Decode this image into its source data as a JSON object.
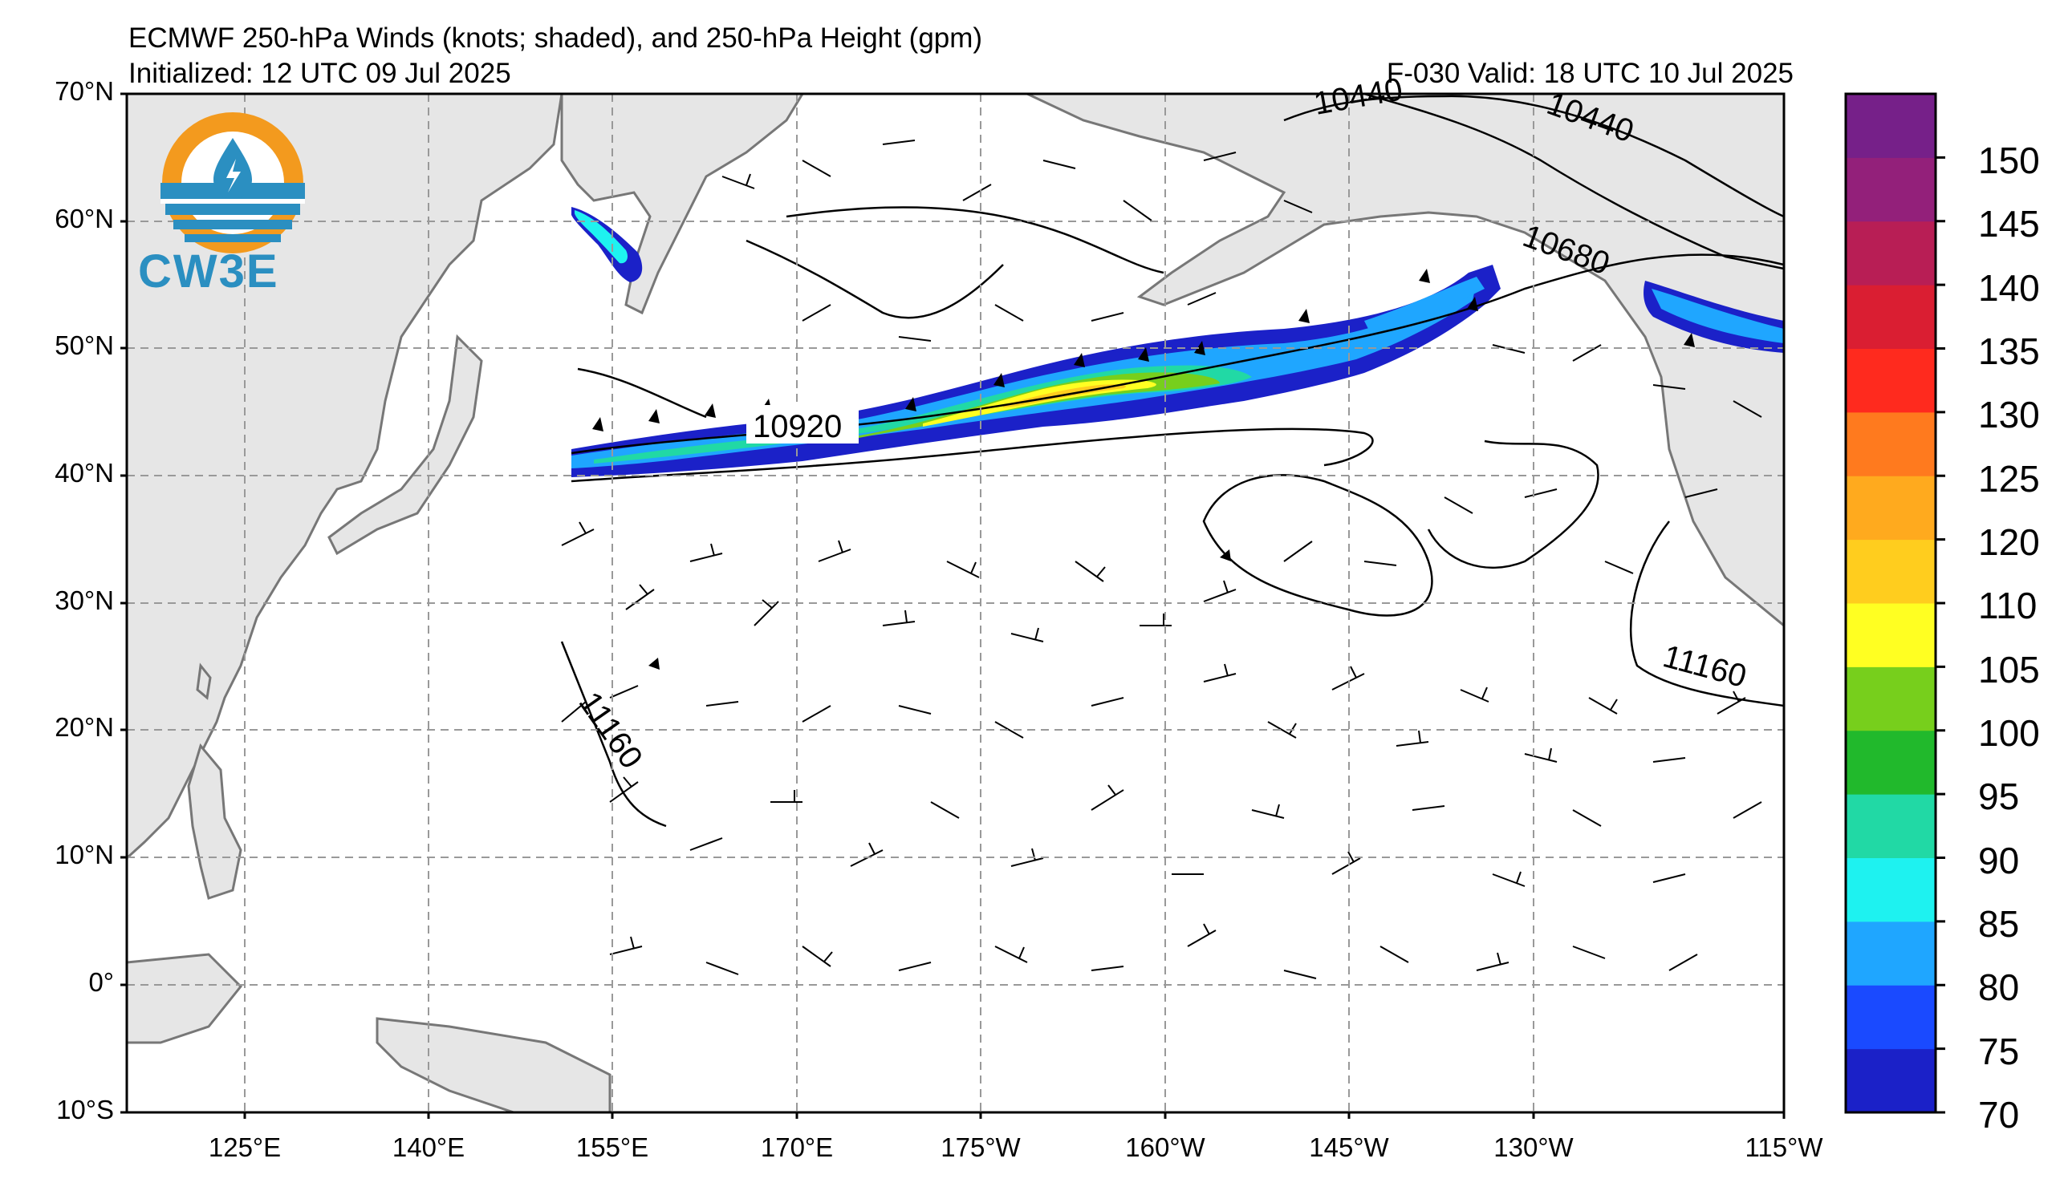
{
  "header": {
    "title": "ECMWF 250-hPa Winds (knots; shaded), and 250-hPa Height (gpm)",
    "initialized": "Initialized: 12 UTC 09 Jul 2025",
    "valid": "F-030  Valid: 18 UTC 10 Jul 2025"
  },
  "logo": {
    "text": "CW3E",
    "colors": {
      "ring": "#f39a1e",
      "blue": "#2b8fc1"
    }
  },
  "map": {
    "lon_range_east": [
      110,
      245
    ],
    "lat_range": [
      -10,
      70
    ],
    "gridlines": "dashed",
    "lat_labels": [
      "70°N",
      "60°N",
      "50°N",
      "40°N",
      "30°N",
      "20°N",
      "10°N",
      "0°",
      "10°S"
    ],
    "lat_values": [
      70,
      60,
      50,
      40,
      30,
      20,
      10,
      0,
      -10
    ],
    "lon_labels": [
      "125°E",
      "140°E",
      "155°E",
      "170°E",
      "175°W",
      "160°W",
      "145°W",
      "130°W",
      "115°W"
    ],
    "lon_values": [
      125,
      140,
      155,
      170,
      185,
      200,
      215,
      230,
      245
    ],
    "land_color": "#e6e6e6",
    "contour_labels": [
      {
        "text": "10920",
        "lon": 172,
        "lat": 44
      },
      {
        "text": "10440",
        "lon": 208,
        "lat": 68
      },
      {
        "text": "10440",
        "lon": 222,
        "lat": 67
      },
      {
        "text": "10680",
        "lon": 227,
        "lat": 56
      },
      {
        "text": "11160",
        "lon": 239,
        "lat": 26
      },
      {
        "text": "11160",
        "lon": 154,
        "lat": 19
      }
    ]
  },
  "colorbar": {
    "unit": "knots",
    "levels": [
      70,
      75,
      80,
      85,
      90,
      95,
      100,
      105,
      110,
      120,
      125,
      130,
      135,
      140,
      145,
      150,
      155
    ],
    "labels": [
      "70",
      "75",
      "80",
      "85",
      "90",
      "95",
      "100",
      "105",
      "110",
      "120",
      "125",
      "130",
      "135",
      "140",
      "145",
      "150"
    ],
    "colors": [
      "#1b21c8",
      "#1a4aff",
      "#1fa6ff",
      "#1ef2f0",
      "#21d9a5",
      "#21b92c",
      "#77cf1c",
      "#ffff22",
      "#ffcd1e",
      "#ffaa1e",
      "#ff7a1e",
      "#ff2a1e",
      "#da1e32",
      "#b81e55",
      "#93207a",
      "#762089"
    ]
  }
}
